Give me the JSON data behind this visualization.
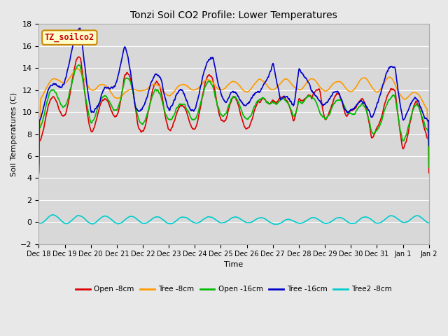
{
  "title": "Tonzi Soil CO2 Profile: Lower Temperatures",
  "xlabel": "Time",
  "ylabel": "Soil Temperatures (C)",
  "ylim": [
    -2,
    18
  ],
  "yticks": [
    -2,
    0,
    2,
    4,
    6,
    8,
    10,
    12,
    14,
    16,
    18
  ],
  "background_color": "#e8e8e8",
  "plot_bg_color": "#d8d8d8",
  "grid_color": "#ffffff",
  "annotation_text": "TZ_soilco2",
  "annotation_bg": "#ffffcc",
  "annotation_border": "#cc8800",
  "annotation_text_color": "#cc0000",
  "series": {
    "open_8cm": {
      "color": "#dd0000",
      "label": "Open -8cm",
      "lw": 1.2
    },
    "tree_8cm": {
      "color": "#ff9900",
      "label": "Tree -8cm",
      "lw": 1.2
    },
    "open_16cm": {
      "color": "#00bb00",
      "label": "Open -16cm",
      "lw": 1.2
    },
    "tree_16cm": {
      "color": "#0000cc",
      "label": "Tree -16cm",
      "lw": 1.2
    },
    "tree2_8cm": {
      "color": "#00cccc",
      "label": "Tree2 -8cm",
      "lw": 1.2
    }
  },
  "tick_labels": [
    "Dec 18",
    "Dec 19",
    "Dec 20",
    "Dec 21",
    "Dec 22",
    "Dec 23",
    "Dec 24",
    "Dec 25",
    "Dec 26",
    "Dec 27",
    "Dec 28",
    "Dec 29",
    "Dec 30",
    "Dec 31",
    "Jan 1",
    "Jan 2"
  ]
}
